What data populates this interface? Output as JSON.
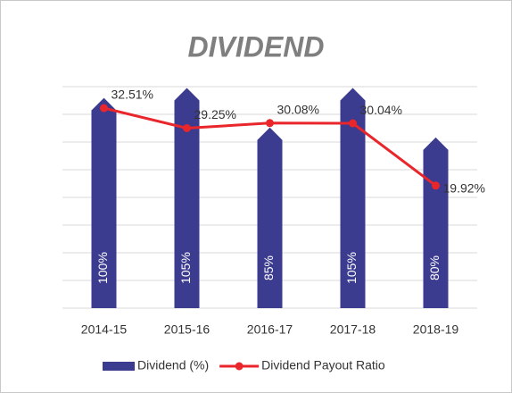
{
  "chart_data": {
    "type": "bar",
    "title": "DIVIDEND",
    "categories": [
      "2014-15",
      "2015-16",
      "2016-17",
      "2017-18",
      "2018-19"
    ],
    "series": [
      {
        "name": "Dividend (%)",
        "type": "bar",
        "color": "#3b3b8f",
        "values": [
          100,
          105,
          85,
          105,
          80
        ],
        "value_labels": [
          "100%",
          "105%",
          "85%",
          "105%",
          "80%"
        ]
      },
      {
        "name": "Dividend Payout Ratio",
        "type": "line",
        "axis": "y2",
        "color": "#e8262b",
        "values": [
          32.51,
          29.25,
          30.08,
          30.04,
          19.92
        ],
        "value_labels": [
          "32.51%",
          "29.25%",
          "30.08%",
          "30.04%",
          "19.92%"
        ]
      }
    ],
    "ylim": [
      0,
      112
    ],
    "yticks": [
      0,
      14,
      28,
      42,
      56,
      70,
      84,
      98,
      112
    ],
    "y2lim": [
      0,
      36
    ],
    "grid": true,
    "legend": "bottom"
  }
}
